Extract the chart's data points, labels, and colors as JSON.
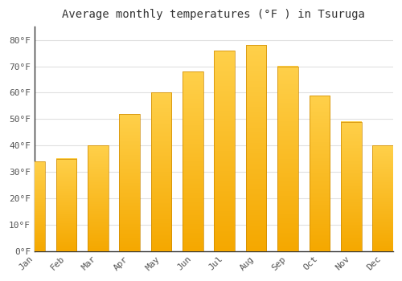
{
  "title": "Average monthly temperatures (°F ) in Tsuruga",
  "months": [
    "Jan",
    "Feb",
    "Mar",
    "Apr",
    "May",
    "Jun",
    "Jul",
    "Aug",
    "Sep",
    "Oct",
    "Nov",
    "Dec"
  ],
  "values": [
    34,
    35,
    40,
    52,
    60,
    68,
    76,
    78,
    70,
    59,
    49,
    40
  ],
  "bar_color_top": "#FFD04A",
  "bar_color_bottom": "#F5A800",
  "bar_edge_color": "#CC8800",
  "background_color": "#FFFFFF",
  "plot_bg_color": "#FFFFFF",
  "grid_color": "#E0E0E0",
  "yticks": [
    0,
    10,
    20,
    30,
    40,
    50,
    60,
    70,
    80
  ],
  "ytick_labels": [
    "0°F",
    "10°F",
    "20°F",
    "30°F",
    "40°F",
    "50°F",
    "60°F",
    "70°F",
    "80°F"
  ],
  "ylim": [
    0,
    85
  ],
  "title_fontsize": 10,
  "tick_fontsize": 8,
  "font_color": "#555555"
}
